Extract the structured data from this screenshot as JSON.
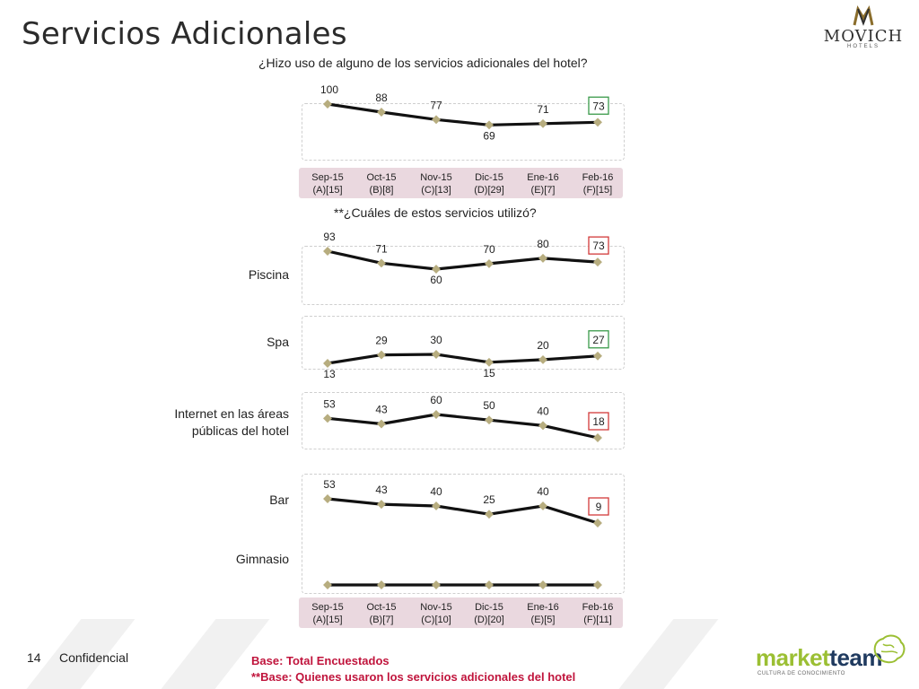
{
  "title": "Servicios Adicionales",
  "brand_logo": "MOVICH",
  "brand_logo_sub": "HOTELS",
  "question_1": "¿Hizo uso de alguno de los servicios adicionales del hotel?",
  "question_2": "**¿Cuáles de estos servicios utilizó?",
  "footer": {
    "page_number": "14",
    "confidential": "Confidencial",
    "base_1": "Base: Total Encuestados",
    "base_2": "**Base: Quienes usaron los servicios adicionales del hotel"
  },
  "footer_logo": {
    "part1": "market",
    "part2": "team",
    "tagline": "CULTURA DE CONOCIMIENTO"
  },
  "colors": {
    "line": "#111111",
    "marker": "#b7ad7f",
    "highlight_green": "#3a9a4a",
    "highlight_red": "#d23a3a",
    "axis_box": "#ead8df",
    "label_red": "#c0143c"
  },
  "chart_data": [
    {
      "type": "line",
      "title": "",
      "categories": [
        "Sep-15",
        "Oct-15",
        "Nov-15",
        "Dic-15",
        "Ene-16",
        "Feb-16"
      ],
      "category_bases": [
        "(A)[15]",
        "(B)[8]",
        "(C)[13]",
        "(D)[29]",
        "(E)[7]",
        "(F)[15]"
      ],
      "series": [
        {
          "name": "",
          "values": [
            100,
            88,
            77,
            69,
            71,
            73
          ],
          "highlight_last": "green"
        }
      ]
    },
    {
      "type": "line",
      "title": "",
      "categories": [
        "Sep-15",
        "Oct-15",
        "Nov-15",
        "Dic-15",
        "Ene-16",
        "Feb-16"
      ],
      "category_bases": [
        "(A)[15]",
        "(B)[7]",
        "(C)[10]",
        "(D)[20]",
        "(E)[5]",
        "(F)[11]"
      ],
      "series": [
        {
          "name": "Piscina",
          "values": [
            93,
            71,
            60,
            70,
            80,
            73
          ],
          "highlight_last": "red"
        },
        {
          "name": "Spa",
          "values": [
            13,
            29,
            30,
            15,
            20,
            27
          ],
          "highlight_last": "green"
        },
        {
          "name": "Internet en las áreas públicas del hotel",
          "values": [
            53,
            43,
            60,
            50,
            40,
            18
          ],
          "highlight_last": "red"
        },
        {
          "name": "Bar",
          "values": [
            53,
            43,
            40,
            25,
            40,
            9
          ],
          "highlight_last": "red"
        },
        {
          "name": "Gimnasio",
          "values": [
            0,
            0,
            0,
            0,
            0,
            0
          ],
          "highlight_last": "none",
          "show_labels": false
        }
      ]
    }
  ]
}
